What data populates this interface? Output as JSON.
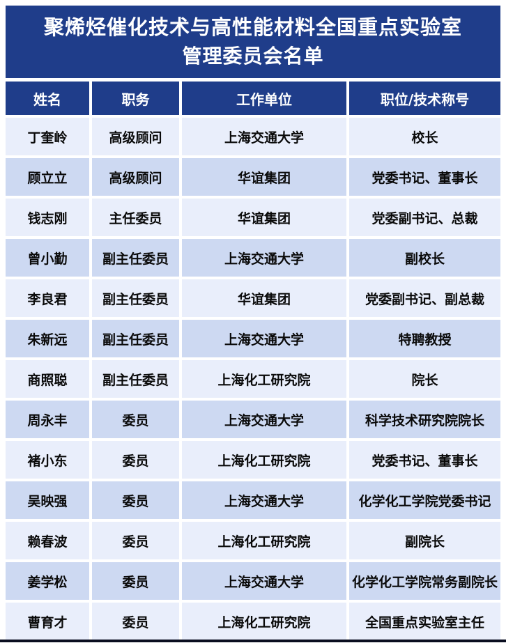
{
  "title": {
    "line1": "聚烯烃催化技术与高性能材料全国重点实验室",
    "line2": "管理委员会名单"
  },
  "colors": {
    "header_navy": "#1f3d8a",
    "row_light": "#e9eefb",
    "row_dark": "#cdd9f2",
    "title_text": "#ffffff",
    "body_text": "#0a0a0a",
    "bottom_rule": "#0a0e20"
  },
  "table": {
    "headers": [
      "姓名",
      "职务",
      "工作单位",
      "职位/技术称号"
    ],
    "rows": [
      {
        "cells": [
          "丁奎岭",
          "高级顾问",
          "上海交通大学",
          "校长"
        ]
      },
      {
        "cells": [
          "顾立立",
          "高级顾问",
          "华谊集团",
          "党委书记、董事长"
        ]
      },
      {
        "cells": [
          "钱志刚",
          "主任委员",
          "华谊集团",
          "党委副书记、总裁"
        ]
      },
      {
        "cells": [
          "曾小勤",
          "副主任委员",
          "上海交通大学",
          "副校长"
        ]
      },
      {
        "cells": [
          "李良君",
          "副主任委员",
          "华谊集团",
          "党委副书记、副总裁"
        ]
      },
      {
        "cells": [
          "朱新远",
          "副主任委员",
          "上海交通大学",
          "特聘教授"
        ]
      },
      {
        "cells": [
          "商照聪",
          "副主任委员",
          "上海化工研究院",
          "院长"
        ]
      },
      {
        "cells": [
          "周永丰",
          "委员",
          "上海交通大学",
          "科学技术研究院院长"
        ]
      },
      {
        "cells": [
          "褚小东",
          "委员",
          "上海化工研究院",
          "党委书记、董事长"
        ]
      },
      {
        "cells": [
          "吴映强",
          "委员",
          "上海交通大学",
          "化学化工学院党委书记"
        ]
      },
      {
        "cells": [
          "赖春波",
          "委员",
          "上海化工研究院",
          "副院长"
        ]
      },
      {
        "cells": [
          "姜学松",
          "委员",
          "上海交通大学",
          "化学化工学院常务副院长"
        ]
      },
      {
        "cells": [
          "曹育才",
          "委员",
          "上海化工研究院",
          "全国重点实验室主任"
        ]
      }
    ]
  }
}
